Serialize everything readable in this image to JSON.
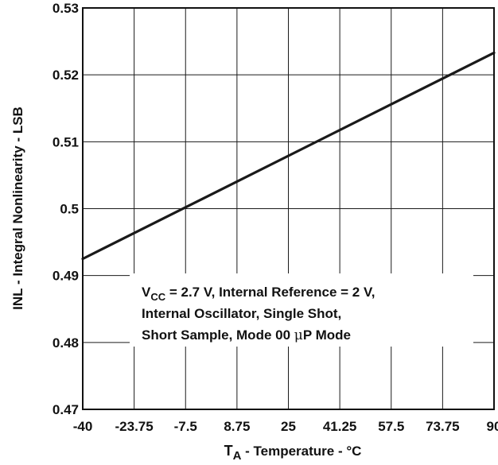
{
  "chart_data": {
    "type": "line",
    "xlabel": {
      "main": "T",
      "sub": "A",
      "rest": " - Temperature - °C"
    },
    "ylabel": "INL - Integral Nonlinearity - LSB",
    "x_ticks": [
      -40,
      -23.75,
      -7.5,
      8.75,
      25,
      41.25,
      57.5,
      73.75,
      90
    ],
    "x_tick_labels": [
      "-40",
      "-23.75",
      "-7.5",
      "8.75",
      "25",
      "41.25",
      "57.5",
      "73.75",
      "90"
    ],
    "y_ticks": [
      0.47,
      0.48,
      0.49,
      0.5,
      0.51,
      0.52,
      0.53
    ],
    "y_tick_labels": [
      "0.47",
      "0.48",
      "0.49",
      "0.5",
      "0.51",
      "0.52",
      "0.53"
    ],
    "xlim": [
      -40,
      90
    ],
    "ylim": [
      0.47,
      0.53
    ],
    "grid": true,
    "series": [
      {
        "x": [
          -40,
          90
        ],
        "y": [
          0.4925,
          0.5233
        ]
      }
    ],
    "annotation": {
      "line1": {
        "prefix": "V",
        "sub": "CC",
        "rest": " = 2.7 V, Internal Reference = 2 V,"
      },
      "line2": "Internal Oscillator, Single Shot,",
      "line3": {
        "before": "Short Sample, Mode 00 ",
        "mu": "μ",
        "after": "P Mode"
      }
    },
    "colors": {
      "line": "#1a1a1a",
      "grid": "#1a1a1a",
      "axis": "#111111"
    }
  }
}
